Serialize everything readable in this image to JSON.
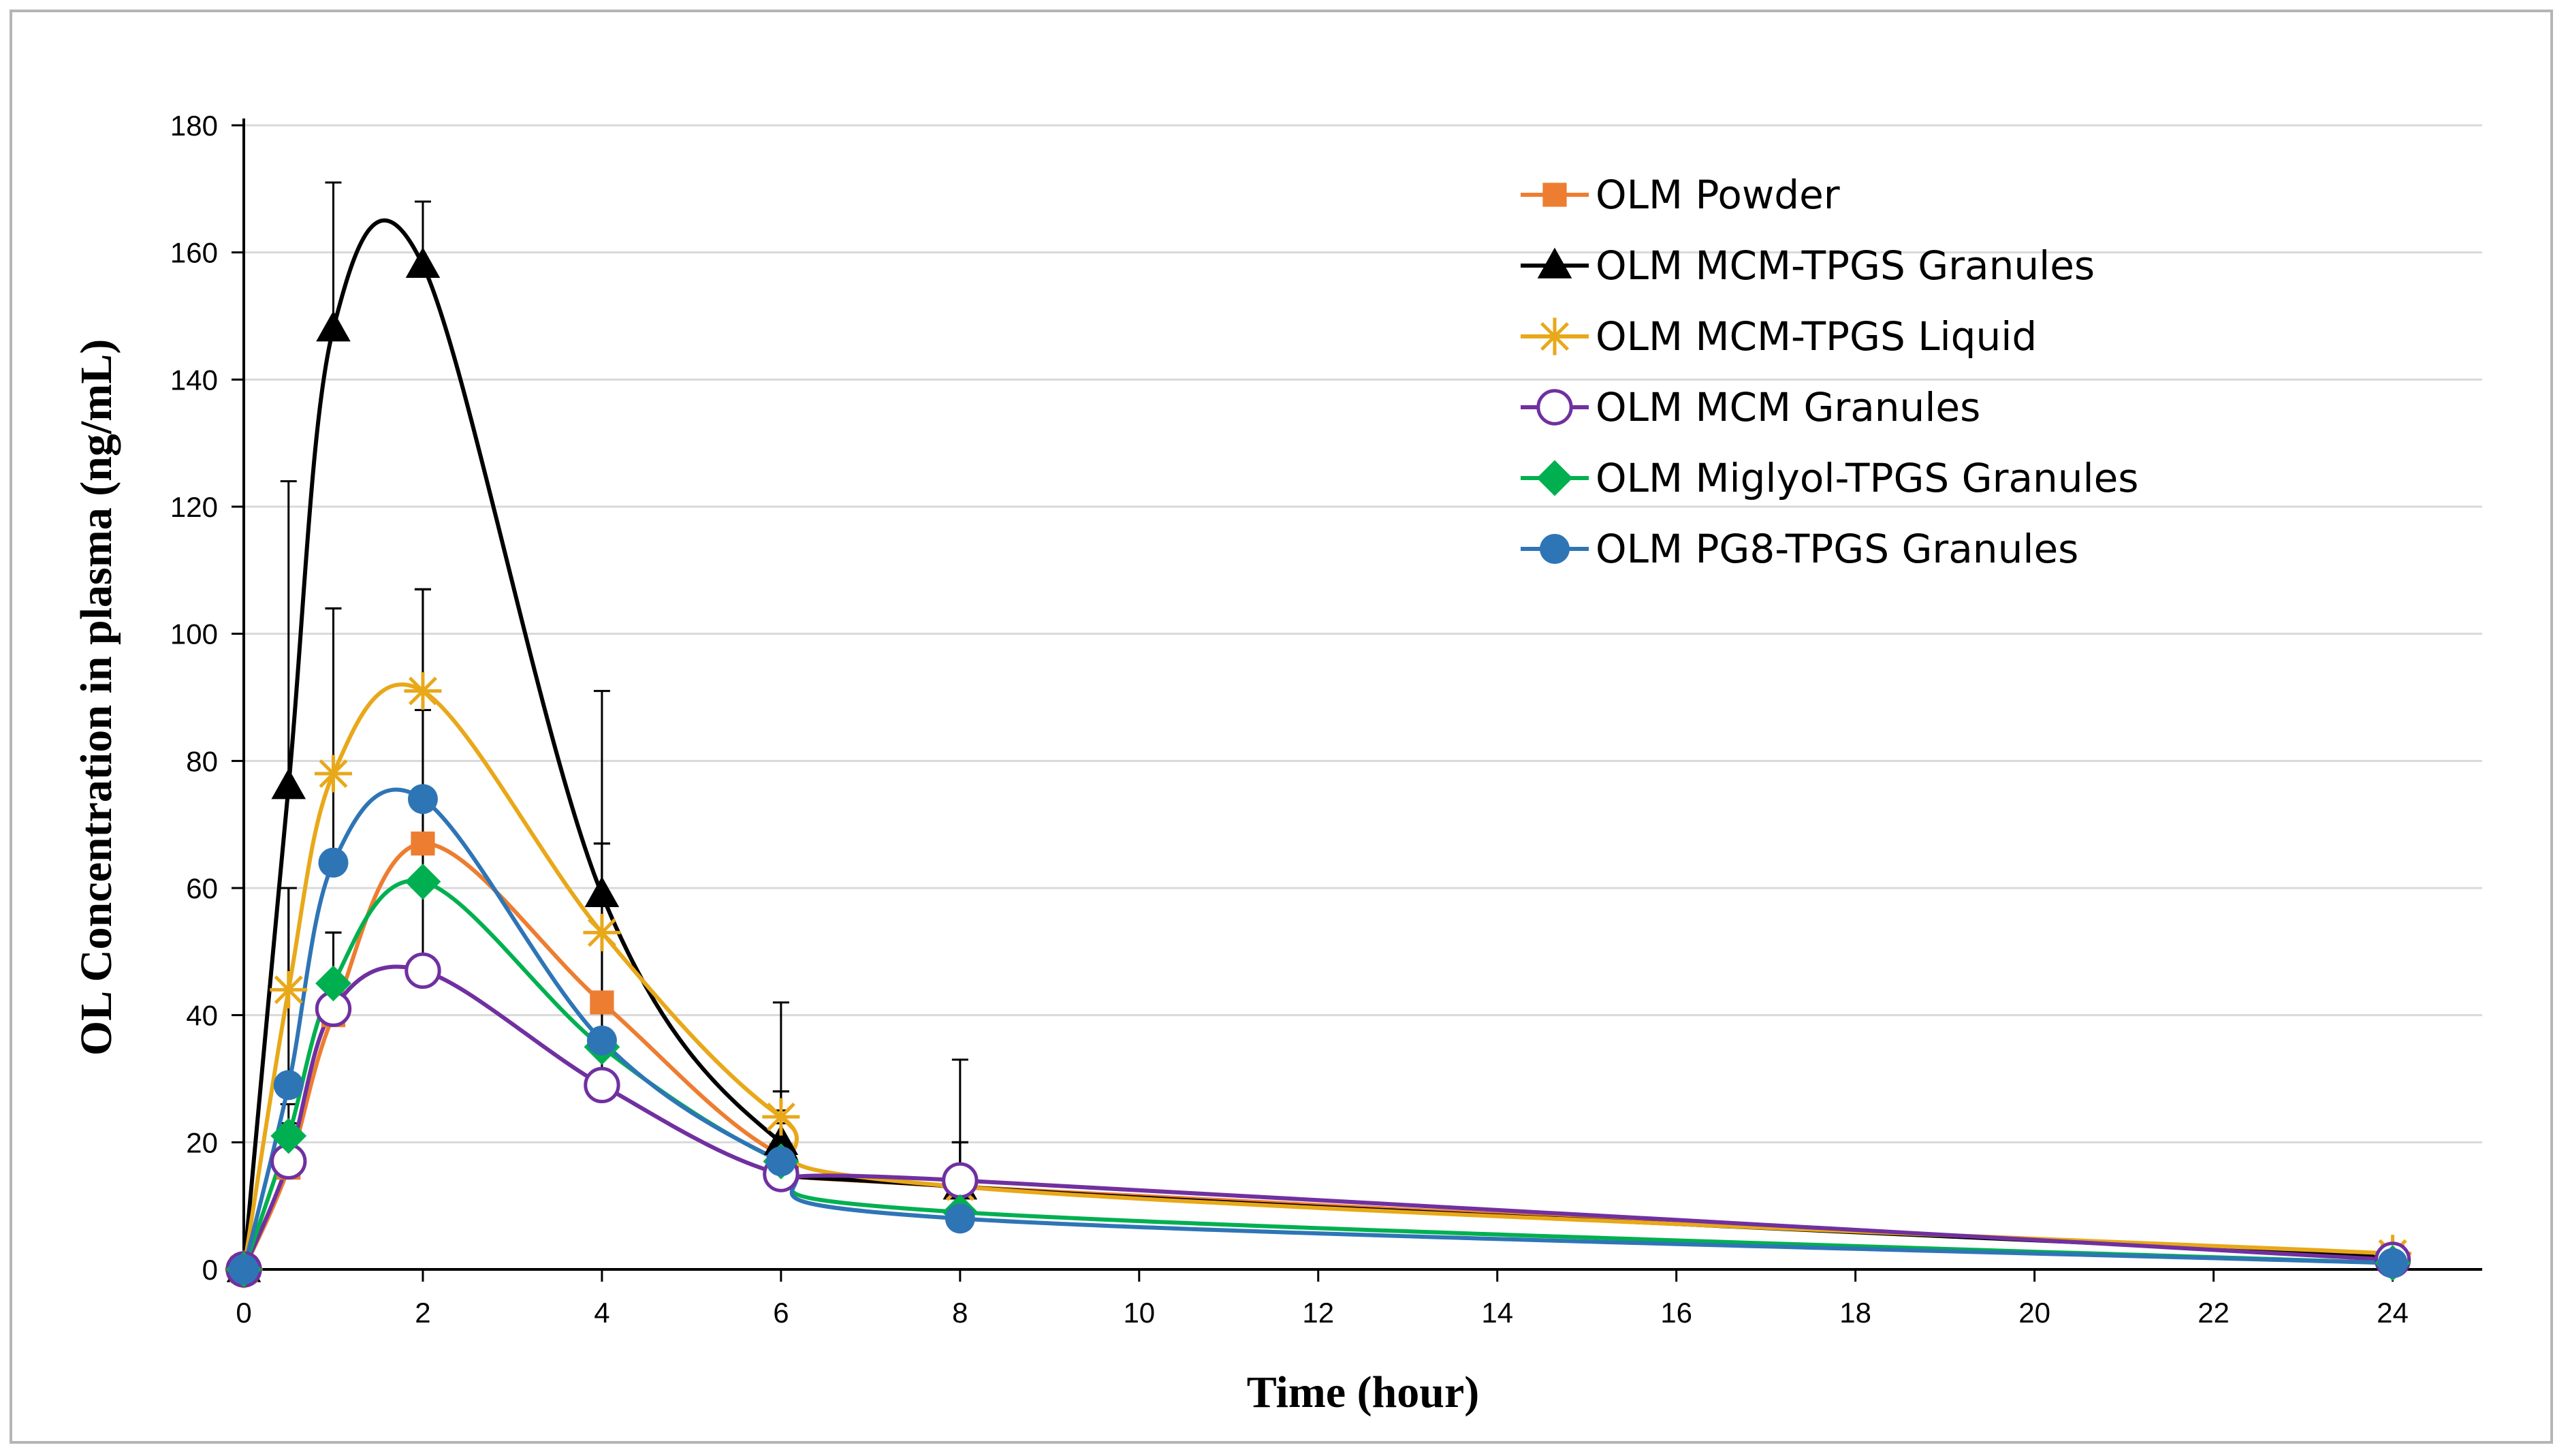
{
  "chart_data": {
    "type": "line",
    "title": "",
    "xlabel": "Time (hour)",
    "ylabel": "OL Concentration in plasma (ng/mL)",
    "xlim": [
      0,
      25
    ],
    "ylim": [
      0,
      180
    ],
    "xticks": [
      0,
      2,
      4,
      6,
      8,
      10,
      12,
      14,
      16,
      18,
      20,
      22,
      24
    ],
    "yticks": [
      0,
      20,
      40,
      60,
      80,
      100,
      120,
      140,
      160,
      180
    ],
    "grid": "horizontal",
    "legend_position": "top-right",
    "x": [
      0,
      0.5,
      1,
      2,
      4,
      6,
      8,
      24
    ],
    "series": [
      {
        "name": "OLM Powder",
        "color": "#ED7D31",
        "marker": "square",
        "values": [
          0,
          16,
          40,
          67,
          42,
          18,
          13,
          2
        ],
        "error": [
          0,
          0,
          13,
          40,
          25,
          10,
          7,
          0
        ]
      },
      {
        "name": "OLM MCM-TPGS Granules",
        "color": "#000000",
        "marker": "triangle",
        "values": [
          0,
          76,
          148,
          158,
          59,
          20,
          13,
          2
        ],
        "error": [
          0,
          48,
          23,
          10,
          32,
          8,
          7,
          0
        ]
      },
      {
        "name": "OLM MCM-TPGS Liquid",
        "color": "#E8A819",
        "marker": "star",
        "values": [
          0,
          44,
          78,
          91,
          53,
          24,
          13,
          2.5
        ],
        "error": [
          0,
          16,
          26,
          16,
          14,
          18,
          20,
          0
        ]
      },
      {
        "name": "OLM MCM Granules",
        "color": "#7030A0",
        "marker": "circle-open",
        "values": [
          0,
          17,
          41,
          47,
          29,
          15,
          14,
          1.5
        ],
        "error": [
          0,
          6,
          12,
          41,
          6,
          5,
          6,
          0
        ]
      },
      {
        "name": "OLM Miglyol-TPGS Granules",
        "color": "#00B050",
        "marker": "diamond",
        "values": [
          0,
          21,
          45,
          61,
          35,
          17,
          9,
          1
        ],
        "error": [
          0,
          5,
          8,
          46,
          7,
          6,
          5,
          0
        ]
      },
      {
        "name": "OLM PG8-TPGS Granules",
        "color": "#2E75B6",
        "marker": "circle",
        "values": [
          0,
          29,
          64,
          74,
          36,
          17,
          8,
          1
        ],
        "error": [
          0,
          31,
          40,
          33,
          31,
          8,
          5,
          0
        ]
      }
    ]
  }
}
